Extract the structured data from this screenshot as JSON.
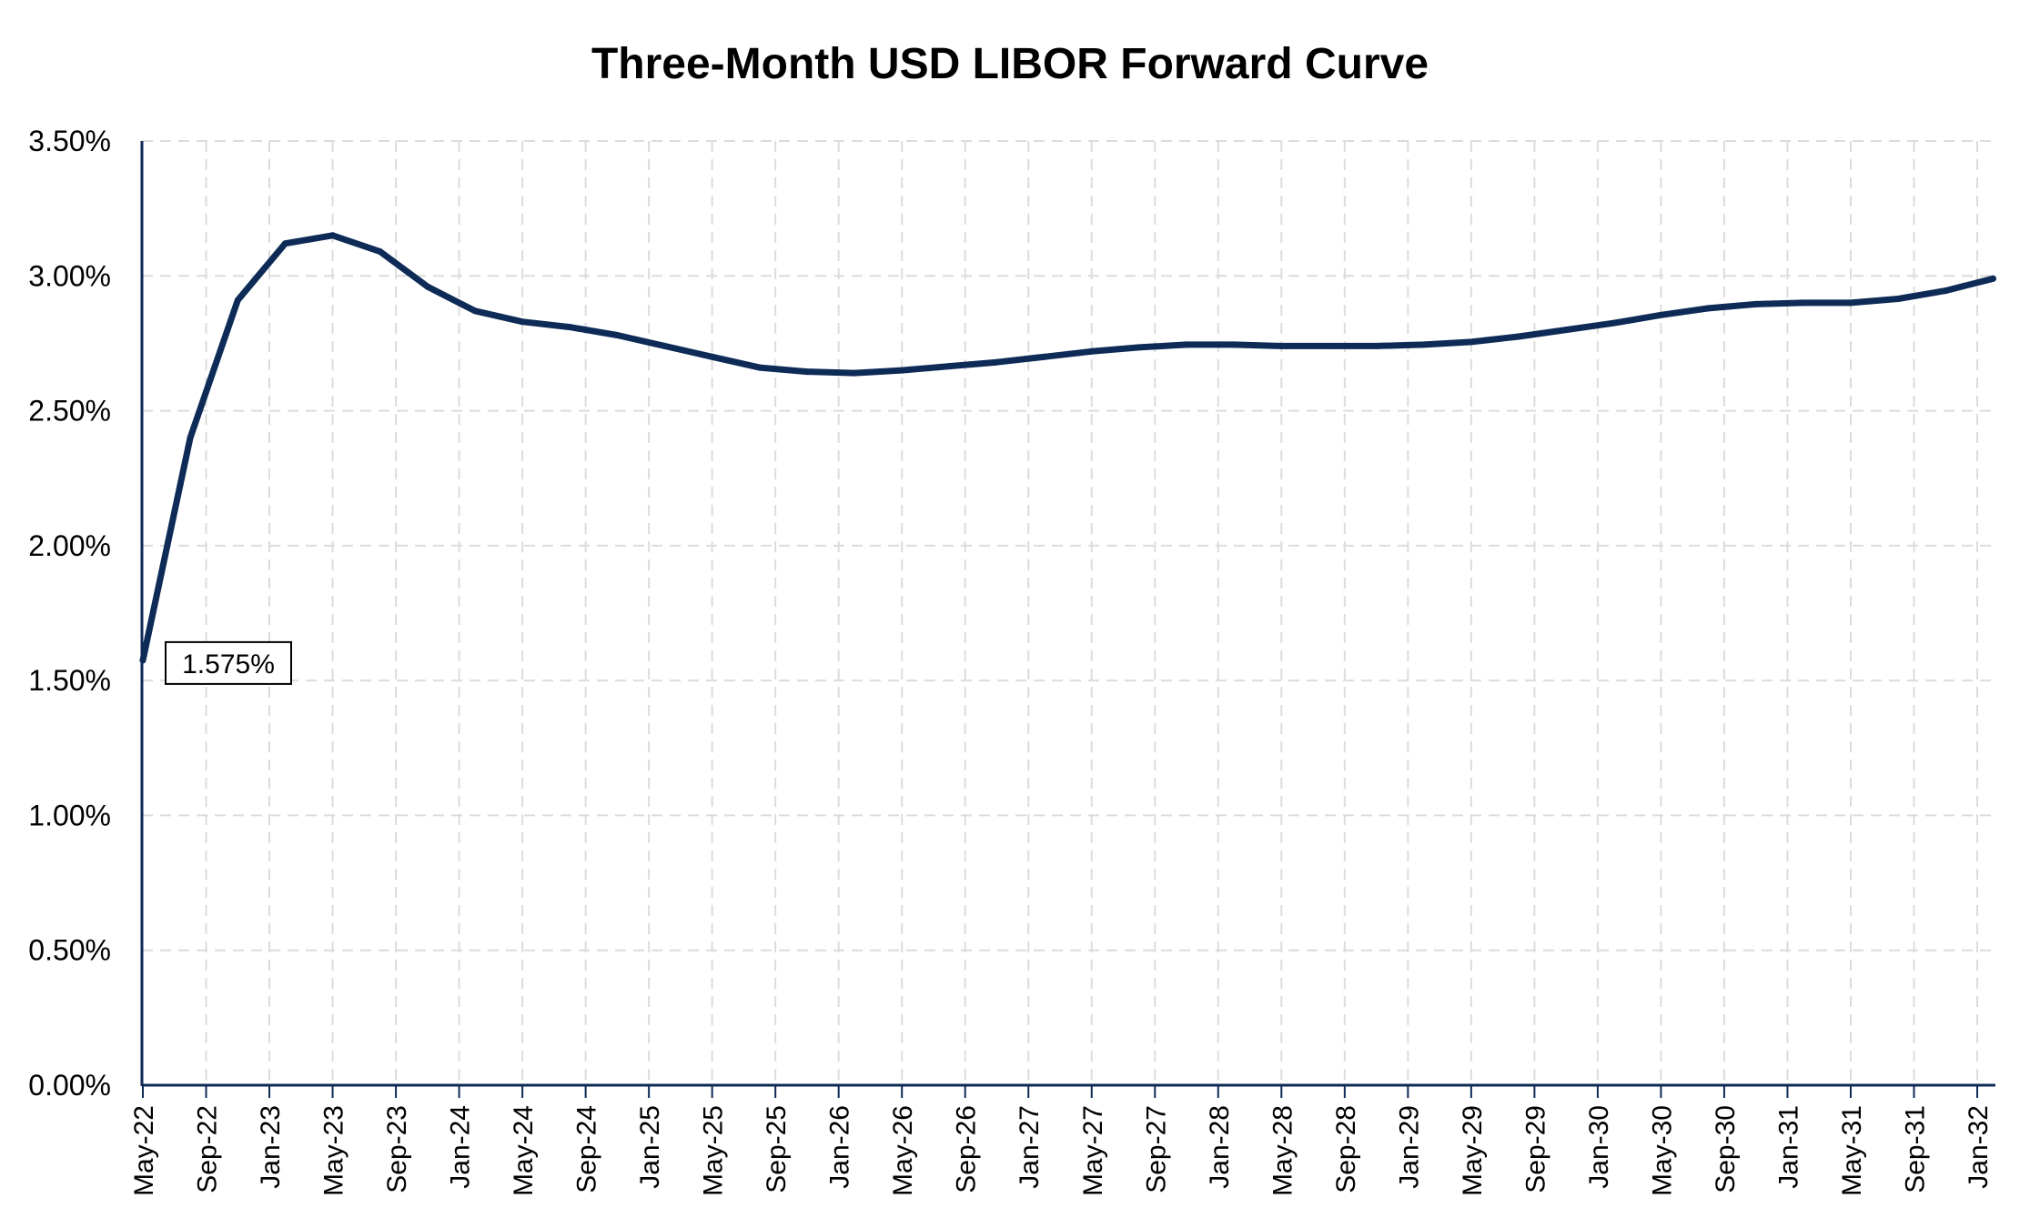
{
  "chart_data": {
    "type": "line",
    "title": "Three-Month USD LIBOR Forward Curve",
    "xlabel": "",
    "ylabel": "",
    "ylim": [
      0,
      3.5
    ],
    "yticks": [
      "0.00%",
      "0.50%",
      "1.00%",
      "1.50%",
      "2.00%",
      "2.50%",
      "3.00%",
      "3.50%"
    ],
    "xticks": [
      "May-22",
      "Sep-22",
      "Jan-23",
      "May-23",
      "Sep-23",
      "Jan-24",
      "May-24",
      "Sep-24",
      "Jan-25",
      "May-25",
      "Sep-25",
      "Jan-26",
      "May-26",
      "Sep-26",
      "Jan-27",
      "May-27",
      "Sep-27",
      "Jan-28",
      "May-28",
      "Sep-28",
      "Jan-29",
      "May-29",
      "Sep-29",
      "Jan-30",
      "May-30",
      "Sep-30",
      "Jan-31",
      "May-31",
      "Sep-31",
      "Jan-32"
    ],
    "grid": true,
    "line_color": "#0D2B56",
    "series": [
      {
        "name": "",
        "x": [
          "May-22",
          "Aug-22",
          "Nov-22",
          "Feb-23",
          "May-23",
          "Aug-23",
          "Nov-23",
          "Feb-24",
          "May-24",
          "Aug-24",
          "Nov-24",
          "Feb-25",
          "May-25",
          "Aug-25",
          "Nov-25",
          "Feb-26",
          "May-26",
          "Aug-26",
          "Nov-26",
          "Feb-27",
          "May-27",
          "Aug-27",
          "Nov-27",
          "Feb-28",
          "May-28",
          "Aug-28",
          "Nov-28",
          "Feb-29",
          "May-29",
          "Aug-29",
          "Nov-29",
          "Feb-30",
          "May-30",
          "Aug-30",
          "Nov-30",
          "Feb-31",
          "May-31",
          "Aug-31",
          "Nov-31",
          "Feb-32"
        ],
        "values": [
          1.575,
          2.4,
          2.91,
          3.12,
          3.15,
          3.09,
          2.96,
          2.87,
          2.83,
          2.81,
          2.78,
          2.74,
          2.7,
          2.66,
          2.645,
          2.64,
          2.65,
          2.665,
          2.68,
          2.7,
          2.72,
          2.735,
          2.745,
          2.745,
          2.74,
          2.74,
          2.74,
          2.745,
          2.755,
          2.775,
          2.8,
          2.825,
          2.855,
          2.88,
          2.895,
          2.9,
          2.9,
          2.915,
          2.945,
          2.99
        ]
      }
    ],
    "annotations": [
      {
        "point_index": 0,
        "label": "1.575%"
      }
    ]
  }
}
